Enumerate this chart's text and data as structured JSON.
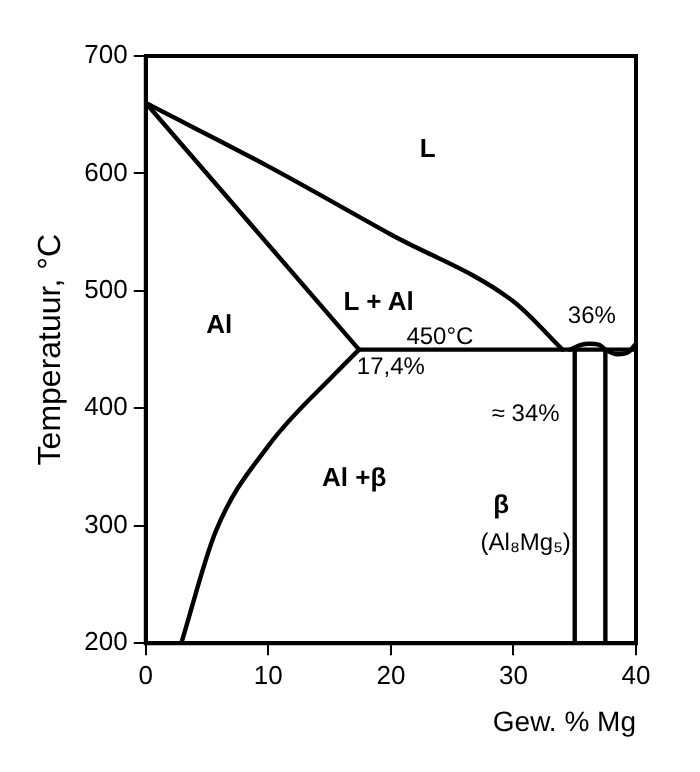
{
  "chart_data": {
    "type": "line",
    "xlabel": "Gew. % Mg",
    "ylabel": "Temperatuur, °C",
    "xlim": [
      0,
      40
    ],
    "ylim": [
      200,
      700
    ],
    "xticks": [
      0,
      10,
      20,
      30,
      40
    ],
    "yticks": [
      200,
      300,
      400,
      500,
      600,
      700
    ],
    "grid": false,
    "legend": false,
    "marker": "none",
    "line_style": "solid",
    "series": [
      {
        "color": "#000000",
        "x": [
          0,
          10,
          20,
          30,
          34
        ],
        "values": [
          660,
          606,
          548,
          491,
          450
        ]
      },
      {
        "color": "#000000",
        "x": [
          0,
          17.4
        ],
        "values": [
          660,
          450
        ]
      },
      {
        "color": "#000000",
        "x": [
          17.4,
          40
        ],
        "values": [
          450,
          450
        ]
      },
      {
        "color": "#000000",
        "x": [
          2.9,
          5.7,
          10,
          15.5,
          17.4
        ],
        "values": [
          200,
          295,
          368,
          430,
          450
        ]
      },
      {
        "color": "#000000",
        "x": [
          35,
          35
        ],
        "values": [
          200,
          450
        ]
      },
      {
        "color": "#000000",
        "x": [
          37.5,
          37.5
        ],
        "values": [
          200,
          450
        ]
      },
      {
        "color": "#000000",
        "x": [
          34.6,
          35.5,
          36.2,
          37,
          37.5,
          38.5,
          39.4,
          40
        ],
        "values": [
          450,
          454,
          455,
          454,
          450,
          446,
          448,
          455
        ]
      }
    ],
    "annotations": [
      "L",
      "L + Al",
      "Al",
      "450°C",
      "17,4%",
      "36%",
      "≈ 34%",
      "Al +β",
      "β",
      "(Al₈Mg₅)"
    ]
  }
}
